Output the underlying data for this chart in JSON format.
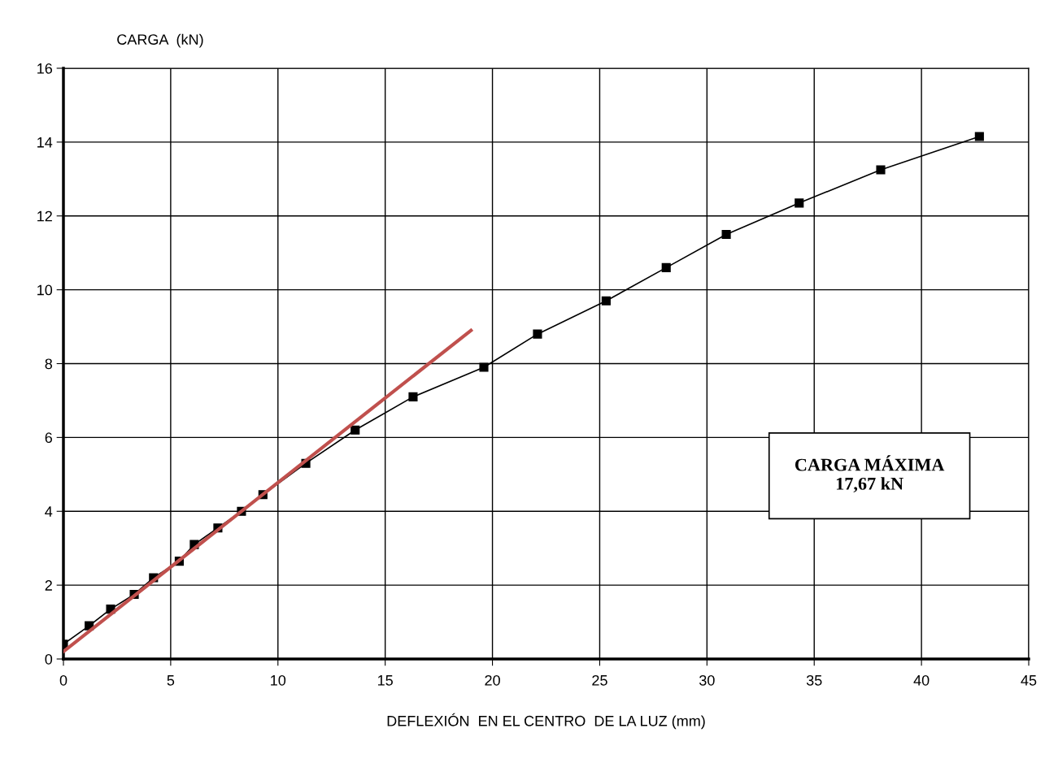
{
  "chart_data": {
    "type": "line",
    "ylabel": "CARGA  (kN)",
    "xlabel": "DEFLEXIÓN  EN EL CENTRO  DE LA LUZ (mm)",
    "xlim": [
      0,
      45
    ],
    "xticks": [
      0,
      5,
      10,
      15,
      20,
      25,
      30,
      35,
      40,
      45
    ],
    "ylim": [
      0,
      16
    ],
    "yticks": [
      0,
      2,
      4,
      6,
      8,
      10,
      12,
      14,
      16
    ],
    "grid": true,
    "legend": false,
    "series": [
      {
        "color": "#000000",
        "marker": "square",
        "line_style": "solid",
        "x": [
          0,
          1.2,
          2.2,
          3.3,
          4.2,
          5.4,
          6.1,
          7.2,
          8.3,
          9.3,
          11.3,
          13.6,
          16.3,
          19.6,
          22.1,
          25.3,
          28.1,
          30.9,
          34.3,
          38.1,
          42.7
        ],
        "values": [
          0.4,
          0.9,
          1.35,
          1.75,
          2.2,
          2.65,
          3.1,
          3.55,
          4.0,
          4.45,
          5.3,
          6.2,
          7.1,
          7.9,
          8.8,
          9.7,
          10.6,
          11.5,
          12.35,
          13.25,
          14.15
        ]
      },
      {
        "type": "line",
        "color": "#c0504d",
        "marker": "none",
        "line_style": "solid",
        "x": [
          0,
          19
        ],
        "values": [
          0.2,
          8.9
        ]
      }
    ],
    "annotations": [
      "CARGA MÁXIMA\n17,67 kN"
    ]
  }
}
